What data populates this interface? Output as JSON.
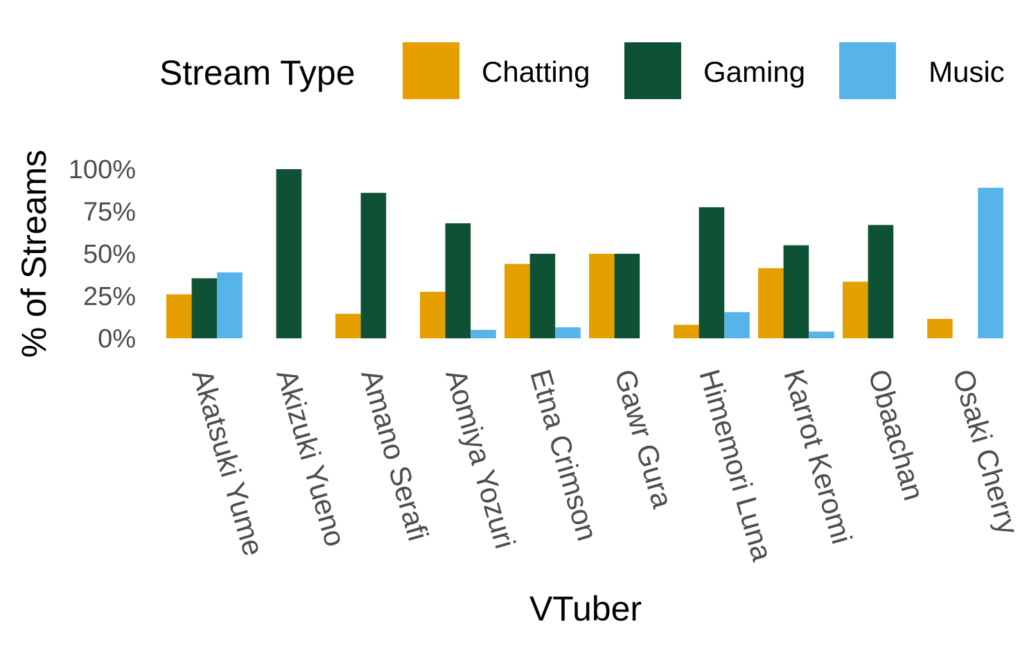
{
  "chart_data": {
    "type": "bar",
    "title": "",
    "xlabel": "VTuber",
    "ylabel": "% of Streams",
    "ylim": [
      0,
      100
    ],
    "yticks": [
      "0%",
      "25%",
      "50%",
      "75%",
      "100%"
    ],
    "ytick_values": [
      0,
      25,
      50,
      75,
      100
    ],
    "grid": false,
    "legend": {
      "title": "Stream Type",
      "placement": "top"
    },
    "categories": [
      "Akatsuki Yume",
      "Akizuki Yueno",
      "Amano Serafi",
      "Aomiya Yozuri",
      "Etna Crimson",
      "Gawr Gura",
      "Himemori Luna",
      "Karrot Keromi",
      "Obaachan",
      "Osaki Cherry"
    ],
    "series": [
      {
        "name": "Chatting",
        "color": "#E69F00",
        "values": [
          26,
          0,
          14.5,
          27.5,
          44,
          50,
          8,
          41.5,
          33.5,
          11.5
        ]
      },
      {
        "name": "Gaming",
        "color": "#0F5135",
        "values": [
          35.5,
          100,
          86,
          68,
          50,
          50,
          77.5,
          55,
          67,
          0
        ]
      },
      {
        "name": "Music",
        "color": "#56B4E9",
        "values": [
          39,
          0,
          0,
          5,
          6.5,
          0,
          15.5,
          4,
          0,
          89
        ]
      }
    ]
  }
}
